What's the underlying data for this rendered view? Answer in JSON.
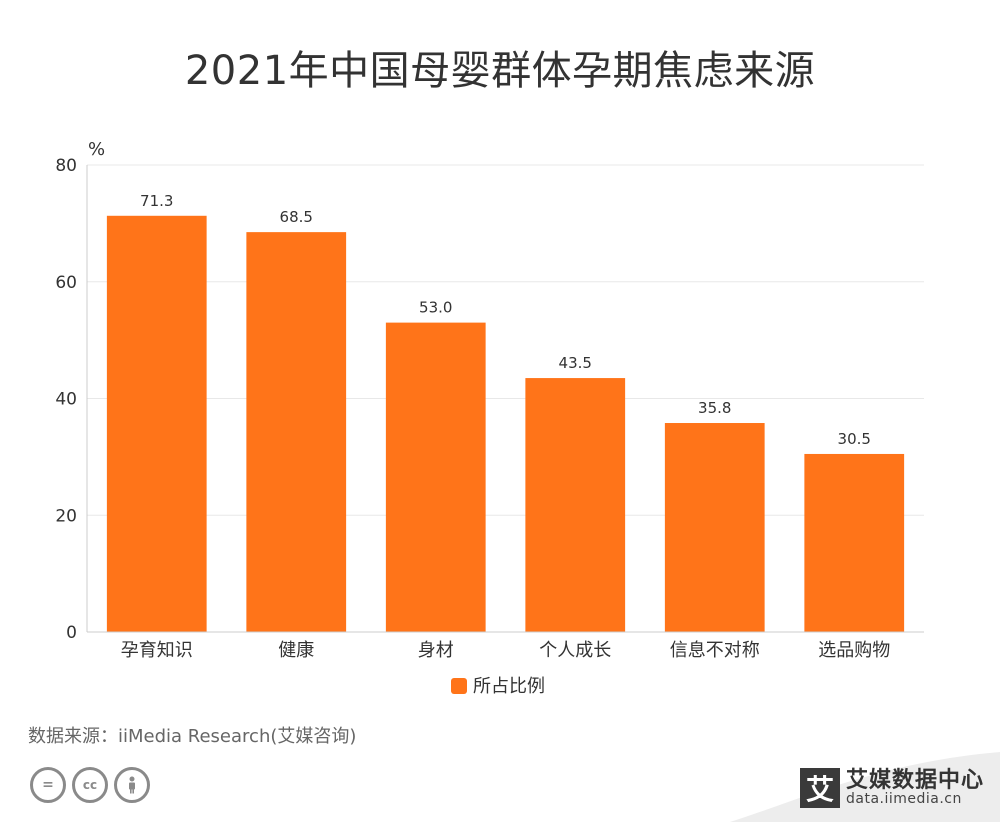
{
  "chart_data": {
    "type": "bar",
    "title": "2021年中国母婴群体孕期焦虑来源",
    "unit_label": "%",
    "categories": [
      "孕育知识",
      "健康",
      "身材",
      "个人成长",
      "信息不对称",
      "选品购物"
    ],
    "series": [
      {
        "name": "所占比例",
        "values": [
          71.3,
          68.5,
          53.0,
          43.5,
          35.8,
          30.5
        ],
        "labels": [
          "71.3",
          "68.5",
          "53.0",
          "43.5",
          "35.8",
          "30.5"
        ]
      }
    ],
    "ylim": [
      0,
      80
    ],
    "yticks": [
      0,
      20,
      40,
      60,
      80
    ],
    "grid": true,
    "legend_position": "bottom",
    "colors": {
      "bar": "#FF7419",
      "grid": "#e8e8e8",
      "axis": "#cccccc",
      "text": "#333333"
    }
  },
  "footer": {
    "source": "数据来源：iiMedia Research(艾媒咨询)",
    "cc_icons": [
      "equal-icon",
      "cc-icon",
      "person-icon"
    ]
  },
  "brand": {
    "logo_char": "艾",
    "name": "艾媒数据中心",
    "url": "data.iimedia.cn"
  }
}
